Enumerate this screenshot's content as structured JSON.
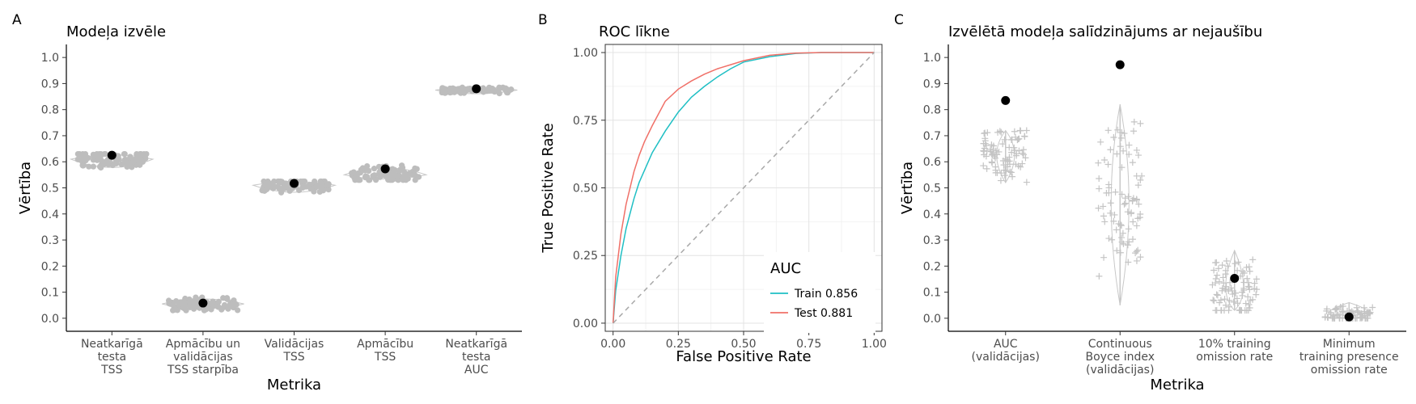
{
  "chart_data": [
    {
      "type": "scatter",
      "panel_label": "A",
      "title": "Modeļa izvēle",
      "xlabel": "Metrika",
      "ylabel": "Vērtība",
      "ylim": [
        -0.05,
        1.05
      ],
      "yticks": [
        "0.0",
        "0.1",
        "0.2",
        "0.3",
        "0.4",
        "0.5",
        "0.6",
        "0.7",
        "0.8",
        "0.9",
        "1.0"
      ],
      "categories": [
        [
          "Neatkarīgā",
          "testa",
          "TSS"
        ],
        [
          "Apmācību un",
          "validācijas",
          "TSS starpība"
        ],
        [
          "Validācijas",
          "TSS"
        ],
        [
          "Apmācību",
          "TSS"
        ],
        [
          "Neatkarīgā",
          "testa",
          "AUC"
        ]
      ],
      "selected_values": [
        0.625,
        0.058,
        0.517,
        0.573,
        0.88
      ],
      "spread": [
        {
          "center": 0.61,
          "min": 0.56,
          "max": 0.63
        },
        {
          "center": 0.055,
          "min": 0.03,
          "max": 0.08
        },
        {
          "center": 0.51,
          "min": 0.47,
          "max": 0.525
        },
        {
          "center": 0.55,
          "min": 0.53,
          "max": 0.59
        },
        {
          "center": 0.875,
          "min": 0.86,
          "max": 0.885
        }
      ],
      "grid": false,
      "colors": {
        "points": "#bdbdbd",
        "selected": "#000000"
      }
    },
    {
      "type": "line",
      "panel_label": "B",
      "title": "ROC līkne",
      "xlabel": "False Positive Rate",
      "ylabel": "True Positive Rate",
      "xlim": [
        -0.03,
        1.03
      ],
      "ylim": [
        -0.03,
        1.03
      ],
      "xticks": [
        "0.00",
        "0.25",
        "0.50",
        "0.75",
        "1.00"
      ],
      "yticks": [
        "0.00",
        "0.25",
        "0.50",
        "0.75",
        "1.00"
      ],
      "grid": true,
      "legend": {
        "title": "AUC",
        "position": "bottom-right"
      },
      "series": [
        {
          "name": "Train 0.856",
          "color": "#1fbfc4",
          "x": [
            0,
            0.01,
            0.03,
            0.05,
            0.08,
            0.1,
            0.15,
            0.2,
            0.25,
            0.3,
            0.35,
            0.4,
            0.45,
            0.5,
            0.6,
            0.7,
            0.8,
            0.9,
            1.0
          ],
          "y": [
            0,
            0.12,
            0.25,
            0.35,
            0.46,
            0.52,
            0.63,
            0.71,
            0.78,
            0.835,
            0.875,
            0.91,
            0.94,
            0.965,
            0.985,
            0.997,
            1.0,
            1.0,
            1.0
          ]
        },
        {
          "name": "Test 0.881",
          "color": "#f07068",
          "x": [
            0,
            0.01,
            0.03,
            0.05,
            0.08,
            0.1,
            0.12,
            0.15,
            0.2,
            0.25,
            0.3,
            0.35,
            0.4,
            0.45,
            0.5,
            0.6,
            0.7,
            0.8,
            0.9,
            1.0
          ],
          "y": [
            0,
            0.17,
            0.33,
            0.44,
            0.56,
            0.62,
            0.67,
            0.73,
            0.82,
            0.865,
            0.895,
            0.92,
            0.94,
            0.955,
            0.97,
            0.99,
            0.998,
            1.0,
            1.0,
            1.0
          ]
        },
        {
          "name": "",
          "color": "#a8a8a8",
          "dashed": true,
          "x": [
            0,
            1
          ],
          "y": [
            0,
            1
          ]
        }
      ]
    },
    {
      "type": "scatter",
      "panel_label": "C",
      "title": "Izvēlētā modeļa salīdzinājums ar nejaušību",
      "xlabel": "Metrika",
      "ylabel": "Vērtība",
      "ylim": [
        -0.05,
        1.05
      ],
      "yticks": [
        "0.0",
        "0.1",
        "0.2",
        "0.3",
        "0.4",
        "0.5",
        "0.6",
        "0.7",
        "0.8",
        "0.9",
        "1.0"
      ],
      "categories": [
        [
          "AUC",
          "(validācijas)"
        ],
        [
          "Continuous",
          "Boyce index",
          "(validācijas)"
        ],
        [
          "10% training",
          "omission rate"
        ],
        [
          "Minimum",
          "training presence",
          "omission rate"
        ]
      ],
      "selected_values": [
        0.835,
        0.972,
        0.153,
        0.005
      ],
      "spread": [
        {
          "center": 0.63,
          "min": 0.52,
          "max": 0.72
        },
        {
          "center": 0.45,
          "min": 0.05,
          "max": 0.82
        },
        {
          "center": 0.1,
          "min": 0.03,
          "max": 0.26
        },
        {
          "center": 0.01,
          "min": 0.0,
          "max": 0.06
        }
      ],
      "grid": false,
      "colors": {
        "points": "#bdbdbd",
        "selected": "#000000"
      }
    }
  ]
}
